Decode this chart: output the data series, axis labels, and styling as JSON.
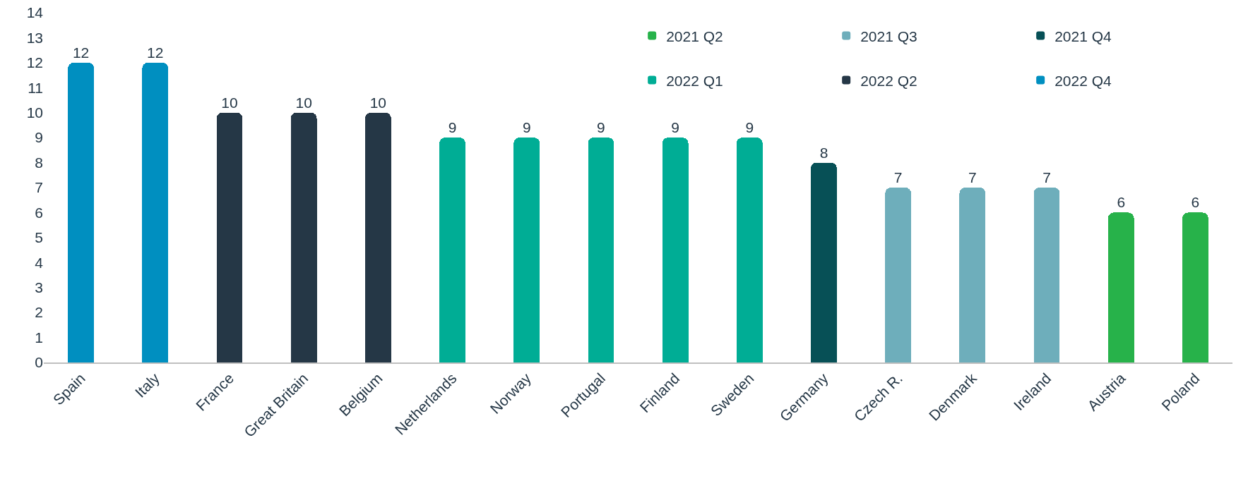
{
  "chart_data": {
    "type": "bar",
    "stacked": true,
    "categories": [
      "Spain",
      "Italy",
      "France",
      "Great Britain",
      "Belgium",
      "Netherlands",
      "Norway",
      "Portugal",
      "Finland",
      "Sweden",
      "Germany",
      "Czech R.",
      "Denmark",
      "Ireland",
      "Austria",
      "Poland"
    ],
    "series": [
      {
        "name": "2021 Q2",
        "color": "#27b24a",
        "values": [
          null,
          null,
          null,
          null,
          null,
          null,
          null,
          null,
          null,
          null,
          null,
          null,
          null,
          null,
          6,
          6
        ]
      },
      {
        "name": "2021 Q3",
        "color": "#6eaebb",
        "values": [
          null,
          null,
          null,
          null,
          null,
          null,
          null,
          null,
          null,
          null,
          null,
          7,
          7,
          7,
          null,
          null
        ]
      },
      {
        "name": "2021 Q4",
        "color": "#075056",
        "values": [
          null,
          null,
          null,
          null,
          null,
          null,
          null,
          null,
          null,
          null,
          8,
          null,
          null,
          null,
          null,
          null
        ]
      },
      {
        "name": "2022 Q1",
        "color": "#00ad95",
        "values": [
          null,
          null,
          null,
          null,
          null,
          9,
          9,
          9,
          9,
          9,
          null,
          null,
          null,
          null,
          null,
          null
        ]
      },
      {
        "name": "2022 Q2",
        "color": "#253746",
        "values": [
          null,
          null,
          10,
          10,
          10,
          null,
          null,
          null,
          null,
          null,
          null,
          null,
          null,
          null,
          null,
          null
        ]
      },
      {
        "name": "2022 Q4",
        "color": "#008fc0",
        "values": [
          12,
          12,
          null,
          null,
          null,
          null,
          null,
          null,
          null,
          null,
          null,
          null,
          null,
          null,
          null,
          null
        ]
      }
    ],
    "ylim": [
      0,
      14
    ],
    "yticks": [
      0,
      1,
      2,
      3,
      4,
      5,
      6,
      7,
      8,
      9,
      10,
      11,
      12,
      13,
      14
    ],
    "data_labels": true,
    "legend": "top right"
  }
}
